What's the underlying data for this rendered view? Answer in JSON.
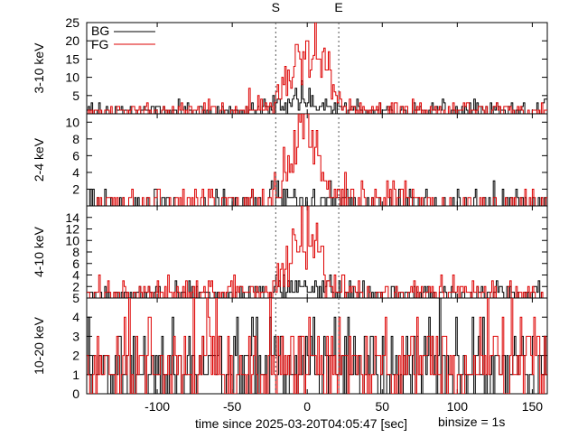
{
  "markers": [
    {
      "label": "S",
      "x": -21
    },
    {
      "label": "E",
      "x": 21
    }
  ],
  "legend": [
    {
      "label": "BG",
      "color": "#000000"
    },
    {
      "label": "FG",
      "color": "#dd0000"
    }
  ],
  "xlabel": "time since 2025-03-20T04:05:47 [sec]",
  "binsize_label": "binsize = 1s",
  "colors": {
    "bg": "#000000",
    "fg": "#dd0000",
    "marker": "#555555"
  },
  "chart_data": [
    {
      "type": "line",
      "ylabel": "3-10 keV",
      "xlim": [
        -147,
        160
      ],
      "ylim": [
        0,
        25
      ],
      "yticks": [
        5,
        10,
        15,
        20,
        25
      ],
      "xticks": [
        -100,
        -50,
        0,
        50,
        100,
        150
      ],
      "series": [
        {
          "name": "BG",
          "x": [
            -140,
            -120,
            -100,
            -80,
            -60,
            -40,
            -25,
            -20,
            -15,
            -10,
            -5,
            0,
            5,
            10,
            15,
            20,
            25,
            40,
            60,
            80,
            100,
            120,
            140,
            158
          ],
          "values": [
            0.8,
            1.0,
            0.9,
            1.1,
            0.8,
            1.0,
            1.5,
            2.0,
            3.0,
            3.5,
            4.0,
            4.0,
            3.5,
            3.0,
            2.5,
            2.0,
            1.0,
            1.0,
            0.9,
            1.1,
            1.0,
            0.8,
            1.0,
            0.9
          ]
        },
        {
          "name": "FG",
          "x": [
            -140,
            -120,
            -100,
            -80,
            -60,
            -40,
            -25,
            -20,
            -15,
            -10,
            -5,
            -2,
            0,
            3,
            5,
            8,
            10,
            15,
            20,
            25,
            40,
            60,
            80,
            100,
            120,
            140,
            158
          ],
          "values": [
            1.0,
            1.1,
            1.0,
            1.2,
            1.0,
            1.3,
            2.0,
            4.0,
            8.0,
            12.0,
            16.0,
            19.0,
            20.0,
            19.0,
            17.0,
            16.0,
            14.0,
            10.0,
            5.0,
            2.0,
            1.2,
            1.1,
            1.0,
            1.2,
            1.0,
            1.1,
            1.0
          ]
        }
      ]
    },
    {
      "type": "line",
      "ylabel": "2-4 keV",
      "xlim": [
        -147,
        160
      ],
      "ylim": [
        0,
        11
      ],
      "yticks": [
        2,
        4,
        6,
        8,
        10
      ],
      "xticks": [
        -100,
        -50,
        0,
        50,
        100,
        150
      ],
      "series": [
        {
          "name": "BG",
          "x": [
            -140,
            -100,
            -60,
            -25,
            -20,
            -10,
            -5,
            0,
            5,
            10,
            15,
            20,
            25,
            60,
            100,
            140,
            158
          ],
          "values": [
            0.3,
            0.3,
            0.3,
            0.5,
            0.8,
            1.0,
            1.2,
            1.3,
            1.2,
            1.0,
            0.8,
            0.6,
            0.3,
            0.3,
            0.3,
            0.3,
            0.3
          ]
        },
        {
          "name": "FG",
          "x": [
            -140,
            -100,
            -60,
            -25,
            -20,
            -15,
            -10,
            -7,
            -5,
            -2,
            0,
            3,
            5,
            8,
            10,
            15,
            20,
            25,
            50,
            60,
            70,
            100,
            140,
            158
          ],
          "values": [
            0.4,
            0.4,
            0.4,
            0.6,
            1.0,
            2.0,
            4.5,
            8.0,
            10.0,
            9.0,
            8.0,
            7.0,
            6.0,
            5.0,
            4.0,
            2.5,
            1.2,
            0.6,
            0.6,
            1.2,
            0.6,
            0.4,
            0.4,
            0.4
          ]
        }
      ]
    },
    {
      "type": "line",
      "ylabel": "4-10 keV",
      "xlim": [
        -147,
        160
      ],
      "ylim": [
        0,
        16
      ],
      "yticks": [
        2,
        4,
        6,
        8,
        10,
        12,
        14
      ],
      "xticks": [
        -100,
        -50,
        0,
        50,
        100,
        150
      ],
      "series": [
        {
          "name": "BG",
          "x": [
            -140,
            -100,
            -60,
            -25,
            -20,
            -10,
            -5,
            0,
            5,
            10,
            15,
            20,
            25,
            60,
            100,
            140,
            158
          ],
          "values": [
            0.6,
            0.7,
            0.6,
            1.0,
            1.5,
            2.0,
            2.5,
            2.8,
            2.5,
            2.0,
            1.5,
            1.0,
            0.7,
            0.7,
            0.6,
            0.7,
            0.6
          ]
        },
        {
          "name": "FG",
          "x": [
            -140,
            -100,
            -60,
            -25,
            -20,
            -15,
            -10,
            -5,
            -2,
            0,
            3,
            5,
            8,
            10,
            15,
            20,
            25,
            60,
            100,
            140,
            158
          ],
          "values": [
            0.8,
            0.9,
            1.0,
            1.5,
            3.0,
            5.0,
            8.0,
            11.0,
            13.0,
            14.0,
            12.0,
            10.0,
            8.0,
            6.0,
            3.0,
            1.5,
            1.0,
            1.0,
            0.9,
            0.9,
            0.8
          ]
        }
      ]
    },
    {
      "type": "line",
      "ylabel": "10-20 keV",
      "xlim": [
        -147,
        160
      ],
      "ylim": [
        0,
        5
      ],
      "yticks": [
        0,
        1,
        2,
        3,
        4,
        5
      ],
      "xticks": [
        -100,
        -50,
        0,
        50,
        100,
        150
      ],
      "series": [
        {
          "name": "BG",
          "x": [
            -140,
            -100,
            -60,
            -20,
            0,
            20,
            60,
            100,
            140,
            158
          ],
          "values": [
            1.3,
            1.3,
            1.3,
            1.4,
            1.5,
            1.4,
            1.3,
            1.3,
            1.3,
            1.3
          ]
        },
        {
          "name": "FG",
          "x": [
            -140,
            -100,
            -60,
            -20,
            0,
            20,
            60,
            100,
            140,
            158
          ],
          "values": [
            1.6,
            1.6,
            1.6,
            1.7,
            1.8,
            1.7,
            1.6,
            1.6,
            1.6,
            1.6
          ]
        }
      ]
    }
  ]
}
